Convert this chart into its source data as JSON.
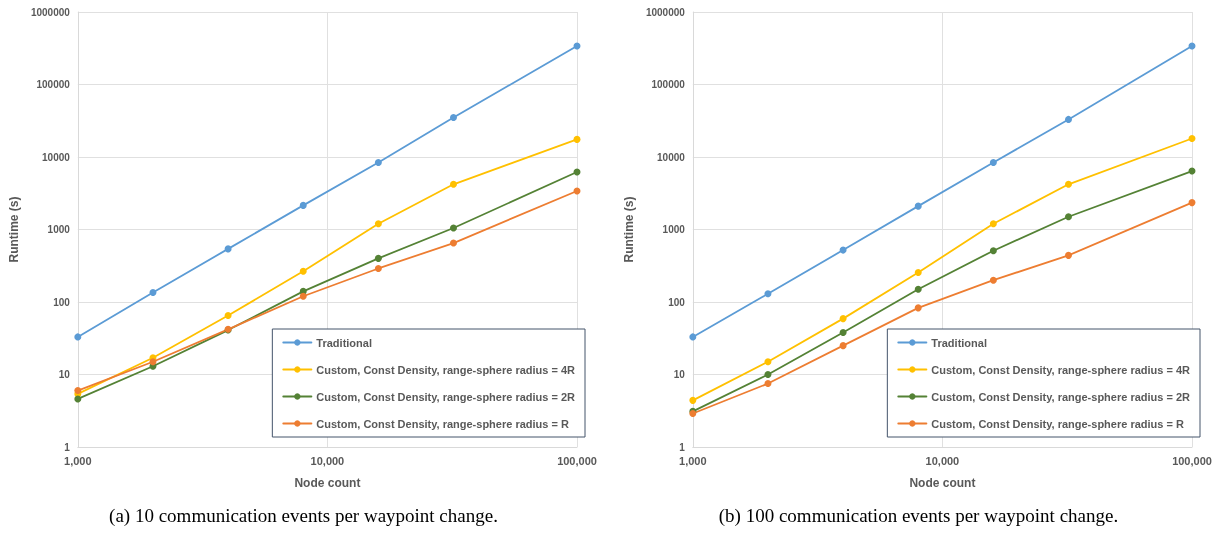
{
  "chart_data": [
    {
      "type": "line",
      "annotations": [
        "(a) 10 communication events per waypoint change."
      ],
      "xlabel": "Node count",
      "ylabel": "Runtime (s)",
      "x": [
        1000,
        2000,
        4000,
        8000,
        16000,
        32000,
        100000
      ],
      "series": [
        {
          "name": "Traditional",
          "color": "#5b9bd5",
          "values": [
            33,
            135,
            540,
            2150,
            8400,
            35000,
            340000
          ]
        },
        {
          "name": "Custom, Const Density, range-sphere radius = 4R",
          "color": "#ffc000",
          "values": [
            5.4,
            17,
            65,
            265,
            1200,
            4200,
            17500
          ]
        },
        {
          "name": "Custom, Const Density, range-sphere radius = 2R",
          "color": "#548235",
          "values": [
            4.6,
            13,
            41,
            140,
            400,
            1050,
            6200
          ]
        },
        {
          "name": "Custom, Const Density, range-sphere radius = R",
          "color": "#ed7d31",
          "values": [
            6,
            15,
            42,
            120,
            290,
            650,
            3400
          ]
        }
      ],
      "log": "xy",
      "xlim": [
        1000,
        100000
      ],
      "xticks": [
        {
          "value": 1000,
          "label": "1,000"
        },
        {
          "value": 10000,
          "label": "10,000"
        },
        {
          "value": 100000,
          "label": "100,000"
        }
      ],
      "ylim": [
        1,
        1000000
      ],
      "yticks": [
        1,
        10,
        100,
        1000,
        10000,
        100000,
        1000000
      ],
      "grid": true,
      "legend": "bottom right",
      "marker": "circle",
      "line_style": "solid"
    },
    {
      "type": "line",
      "annotations": [
        "(b) 100 communication events per waypoint change."
      ],
      "xlabel": "Node count",
      "ylabel": "Runtime (s)",
      "x": [
        1000,
        2000,
        4000,
        8000,
        16000,
        32000,
        100000
      ],
      "series": [
        {
          "name": "Traditional",
          "color": "#5b9bd5",
          "values": [
            33,
            130,
            520,
            2100,
            8400,
            33000,
            340000
          ]
        },
        {
          "name": "Custom, Const Density, range-sphere radius = 4R",
          "color": "#ffc000",
          "values": [
            4.4,
            15,
            59,
            255,
            1200,
            4200,
            18000
          ]
        },
        {
          "name": "Custom, Const Density, range-sphere radius = 2R",
          "color": "#548235",
          "values": [
            3.1,
            10,
            38,
            150,
            510,
            1500,
            6400
          ]
        },
        {
          "name": "Custom, Const Density, range-sphere radius = R",
          "color": "#ed7d31",
          "values": [
            2.9,
            7.5,
            25,
            83,
            200,
            440,
            2350
          ]
        }
      ],
      "log": "xy",
      "xlim": [
        1000,
        100000
      ],
      "xticks": [
        {
          "value": 1000,
          "label": "1,000"
        },
        {
          "value": 10000,
          "label": "10,000"
        },
        {
          "value": 100000,
          "label": "100,000"
        }
      ],
      "ylim": [
        1,
        1000000
      ],
      "yticks": [
        1,
        10,
        100,
        1000,
        10000,
        100000,
        1000000
      ],
      "grid": true,
      "legend": "bottom right",
      "marker": "circle",
      "line_style": "solid"
    }
  ]
}
